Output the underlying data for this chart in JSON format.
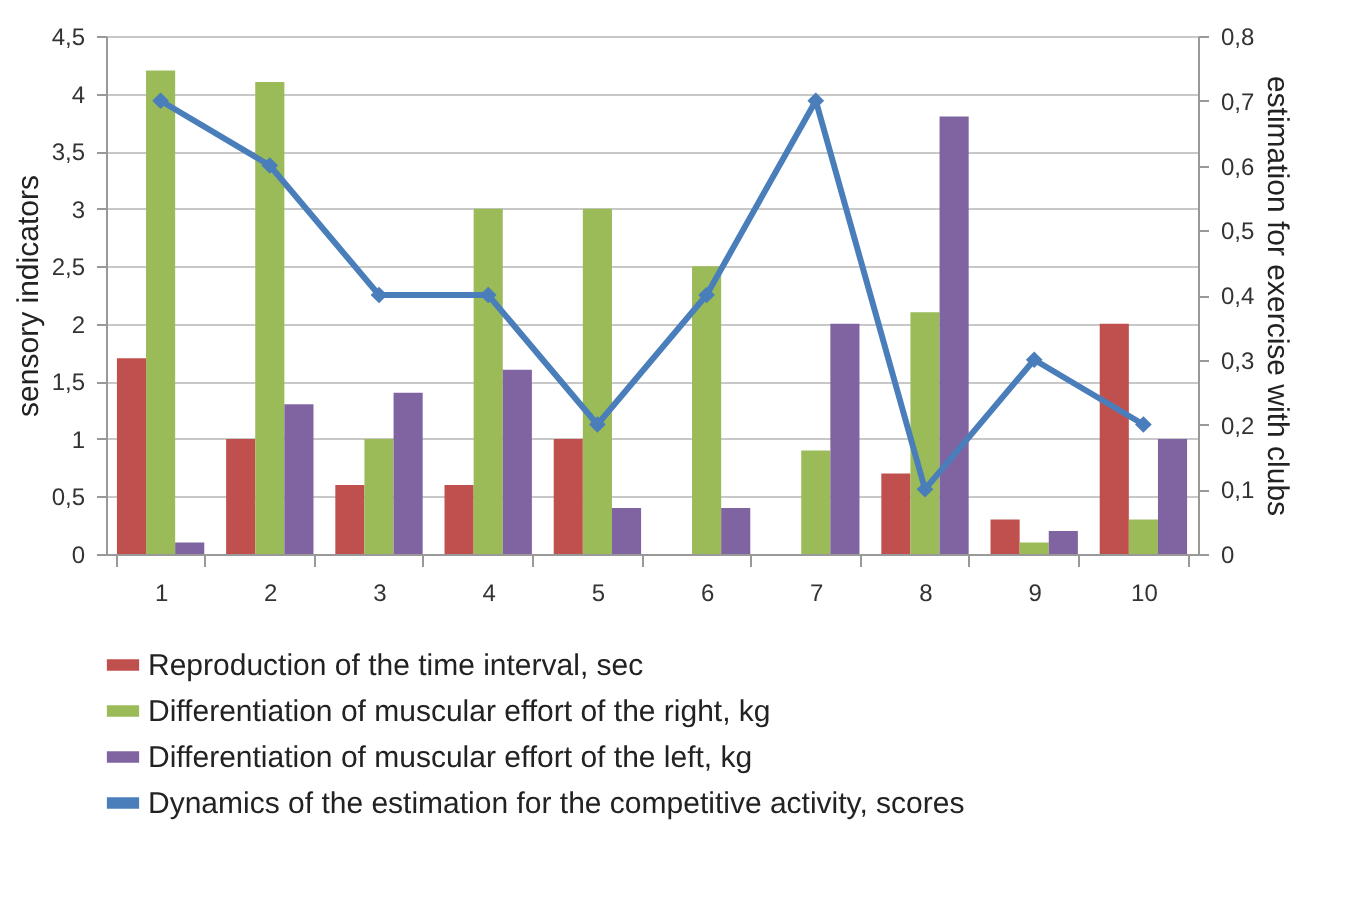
{
  "chart_data": {
    "type": "bar",
    "ylabel": "sensory indicators",
    "y2label": "estimation for exercise with clubs",
    "categories": [
      "1",
      "2",
      "3",
      "4",
      "5",
      "6",
      "7",
      "8",
      "9",
      "10"
    ],
    "series": [
      {
        "name": "Reproduction of the time interval, sec",
        "color": "#c0504d",
        "values": [
          1.7,
          1.0,
          0.6,
          0.6,
          1.0,
          null,
          null,
          0.7,
          0.3,
          2.0
        ]
      },
      {
        "name": "Differentiation of muscular effort of the right, kg",
        "color": "#9bbb59",
        "values": [
          4.2,
          4.1,
          1.0,
          3.0,
          3.0,
          2.5,
          0.9,
          2.1,
          0.1,
          0.3
        ]
      },
      {
        "name": "Differentiation of muscular effort of the left, kg",
        "color": "#8064a2",
        "values": [
          0.1,
          1.3,
          1.4,
          1.6,
          0.4,
          0.4,
          2.0,
          3.8,
          0.2,
          1.0
        ]
      },
      {
        "name": "Dynamics of the estimation for the competitive activity, scores",
        "color": "#4a7ebb",
        "type": "line",
        "axis": "y2",
        "marker": "diamond",
        "values": [
          0.7,
          0.6,
          0.4,
          0.4,
          0.2,
          0.4,
          0.7,
          0.1,
          0.3,
          0.2
        ]
      }
    ],
    "ylim": [
      0,
      4.5
    ],
    "yticks": [
      0,
      {
        "value": 0.5,
        "label": "0,5"
      },
      1,
      {
        "value": 1.5,
        "label": "1,5"
      },
      2,
      {
        "value": 2.5,
        "label": "2,5"
      },
      3,
      {
        "value": 3.5,
        "label": "3,5"
      },
      4,
      {
        "value": 4.5,
        "label": "4,5"
      }
    ],
    "y2lim": [
      0,
      0.8
    ],
    "y2ticks": [
      0,
      {
        "value": 0.1,
        "label": "0,1"
      },
      {
        "value": 0.2,
        "label": "0,2"
      },
      {
        "value": 0.3,
        "label": "0,3"
      },
      {
        "value": 0.4,
        "label": "0,4"
      },
      {
        "value": 0.5,
        "label": "0,5"
      },
      {
        "value": 0.6,
        "label": "0,6"
      },
      {
        "value": 0.7,
        "label": "0,7"
      },
      {
        "value": 0.8,
        "label": "0,8"
      }
    ],
    "grid": "y",
    "legend": "bottom"
  }
}
